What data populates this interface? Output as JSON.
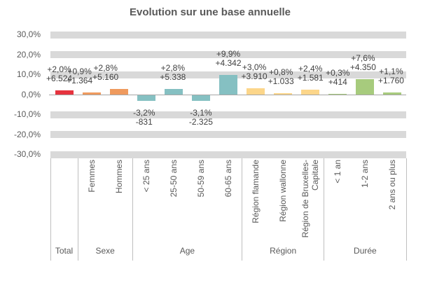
{
  "chart_data": {
    "type": "bar",
    "title": "Evolution sur une base annuelle",
    "xlabel": "",
    "ylabel": "",
    "ylim": [
      -30,
      30
    ],
    "grid": "horizontal-bands-every-10pct",
    "legend": "none",
    "y_axis_ticks": [
      {
        "label": "30,0%",
        "value": 30
      },
      {
        "label": "20,0%",
        "value": 20
      },
      {
        "label": "10,0%",
        "value": 10
      },
      {
        "label": "0,0%",
        "value": 0
      },
      {
        "label": "-10,0%",
        "value": -10
      },
      {
        "label": "-20,0%",
        "value": -20
      },
      {
        "label": "-30,0%",
        "value": -30
      }
    ],
    "groups": [
      {
        "label": "Total",
        "color": "#e6333e",
        "bars": [
          {
            "category": "",
            "pct": 2.0,
            "pct_label": "+2,0%",
            "abs_label": "+6.524"
          }
        ]
      },
      {
        "label": "Sexe",
        "color": "#ef9a5e",
        "bars": [
          {
            "category": "Femmes",
            "pct": 0.9,
            "pct_label": "+0,9%",
            "abs_label": "+1.364"
          },
          {
            "category": "Hommes",
            "pct": 2.8,
            "pct_label": "+2,8%",
            "abs_label": "+5.160"
          }
        ]
      },
      {
        "label": "Age",
        "color": "#85c0c2",
        "bars": [
          {
            "category": "< 25 ans",
            "pct": -3.2,
            "pct_label": "-3,2%",
            "abs_label": "-831"
          },
          {
            "category": "25-50 ans",
            "pct": 2.8,
            "pct_label": "+2,8%",
            "abs_label": "+5.338"
          },
          {
            "category": "50-59 ans",
            "pct": -3.1,
            "pct_label": "-3,1%",
            "abs_label": "-2.325"
          },
          {
            "category": "60-65 ans",
            "pct": 9.9,
            "pct_label": "+9,9%",
            "abs_label": "+4.342"
          }
        ]
      },
      {
        "label": "Région",
        "color": "#fcd68a",
        "bars": [
          {
            "category": "Région flamande",
            "pct": 3.0,
            "pct_label": "+3,0%",
            "abs_label": "+3.910"
          },
          {
            "category": "Région wallonne",
            "pct": 0.8,
            "pct_label": "+0,8%",
            "abs_label": "+1.033"
          },
          {
            "category": "Région de Bruxelles-Capitale",
            "pct": 2.4,
            "pct_label": "+2,4%",
            "abs_label": "+1.581"
          }
        ]
      },
      {
        "label": "Durée",
        "color": "#a7cb7d",
        "bars": [
          {
            "category": "< 1 an",
            "pct": 0.3,
            "pct_label": "+0,3%",
            "abs_label": "+414"
          },
          {
            "category": "1-2 ans",
            "pct": 7.6,
            "pct_label": "+7,6%",
            "abs_label": "+4.350"
          },
          {
            "category": "2 ans ou plus",
            "pct": 1.1,
            "pct_label": "+1,1%",
            "abs_label": "+1.760"
          }
        ]
      }
    ]
  },
  "colors": {
    "band": "#d9d9d9",
    "axis_line": "#a6a6a6",
    "separator": "#bfbfbf",
    "axis_text": "#595959",
    "data_label_text": "#3f3f3f",
    "title_text": "#595959"
  }
}
